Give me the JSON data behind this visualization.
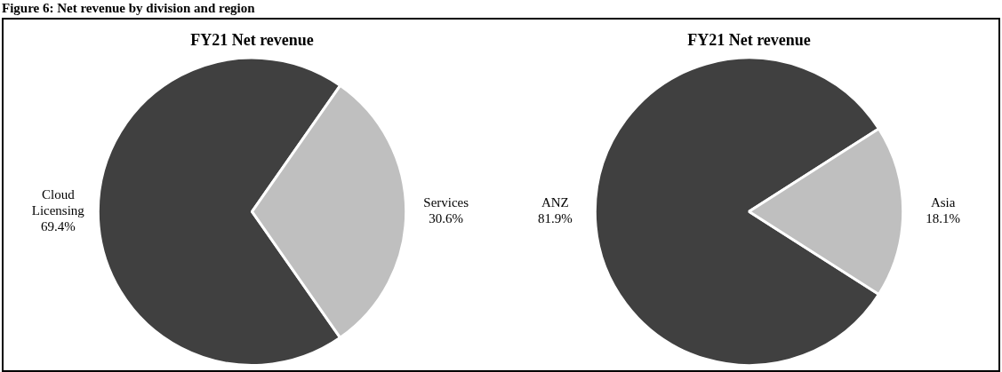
{
  "chart_data": [
    {
      "type": "pie",
      "title": "FY21 Net revenue",
      "categories": [
        "Cloud Licensing",
        "Services"
      ],
      "values": [
        69.4,
        30.6
      ],
      "value_labels": [
        "69.4%",
        "30.6%"
      ],
      "colors": [
        "#404040",
        "#bfbfbf"
      ],
      "legend": false,
      "annotations": [
        "Figure 6: Net revenue by division and region"
      ]
    },
    {
      "type": "pie",
      "title": "FY21 Net revenue",
      "categories": [
        "ANZ",
        "Asia"
      ],
      "values": [
        81.9,
        18.1
      ],
      "value_labels": [
        "81.9%",
        "18.1%"
      ],
      "colors": [
        "#404040",
        "#bfbfbf"
      ],
      "legend": false
    }
  ]
}
